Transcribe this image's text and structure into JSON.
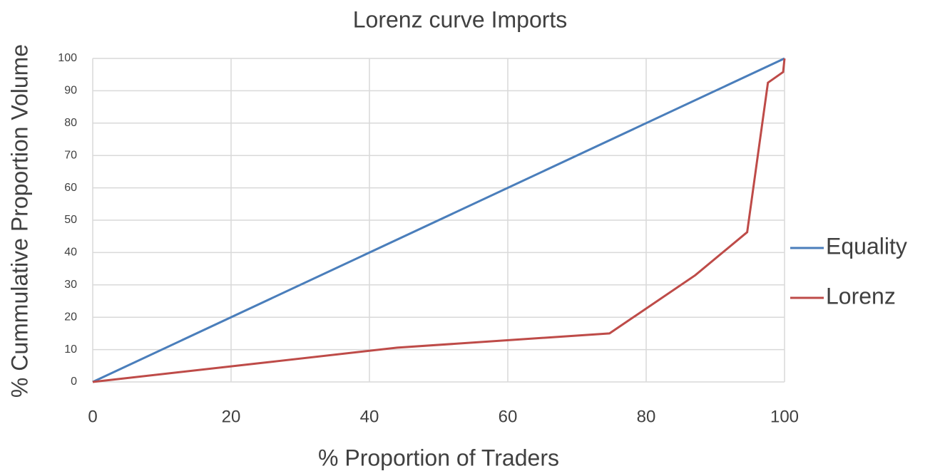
{
  "chart_data": {
    "type": "line",
    "title": "Lorenz curve Imports",
    "x_label": "% Proportion of Traders",
    "y_label": "% Cummulative Proportion Volume",
    "xlim": [
      0,
      100
    ],
    "xticks": [
      0,
      20,
      40,
      60,
      80,
      100
    ],
    "ylim": [
      0,
      100
    ],
    "yticks": [
      0,
      10,
      20,
      30,
      40,
      50,
      60,
      70,
      80,
      90,
      100
    ],
    "grid": true,
    "legend": "right",
    "series": [
      {
        "name": "Equality",
        "color": "#4a7ebb",
        "x": [
          0,
          100
        ],
        "values": [
          0,
          100
        ]
      },
      {
        "name": "Lorenz",
        "color": "#be4b48",
        "x": [
          0,
          44,
          74.7,
          87.1,
          94.6,
          97.6,
          99.8,
          100
        ],
        "values": [
          0,
          10.6,
          15,
          33,
          46.3,
          92.5,
          95.8,
          100
        ]
      }
    ]
  }
}
